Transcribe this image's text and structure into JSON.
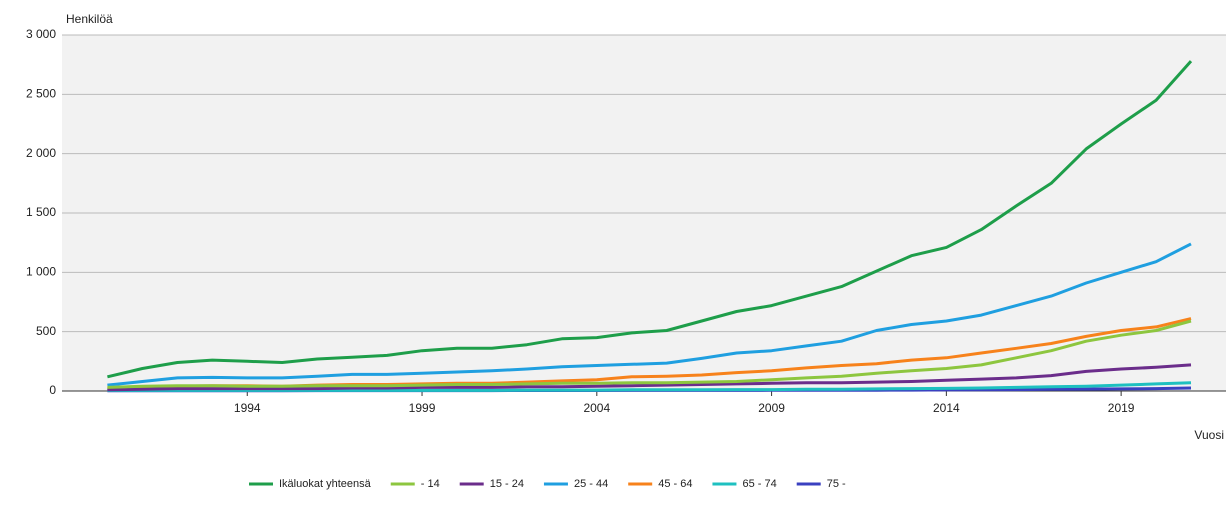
{
  "chart_data": {
    "type": "line",
    "y_label": "Henkilöä",
    "x_label": "Vuosi",
    "x": [
      1990,
      1991,
      1992,
      1993,
      1994,
      1995,
      1996,
      1997,
      1998,
      1999,
      2000,
      2001,
      2002,
      2003,
      2004,
      2005,
      2006,
      2007,
      2008,
      2009,
      2010,
      2011,
      2012,
      2013,
      2014,
      2015,
      2016,
      2017,
      2018,
      2019,
      2020,
      2021
    ],
    "xlim": [
      1988.7,
      2022
    ],
    "xticks": [
      1994,
      1999,
      2004,
      2009,
      2014,
      2019
    ],
    "ylim": [
      0,
      3000
    ],
    "yticks": [
      0,
      500,
      {
        "value": 1000,
        "label": "1 000"
      },
      {
        "value": 1500,
        "label": "1 500"
      },
      {
        "value": 2000,
        "label": "2 000"
      },
      {
        "value": 2500,
        "label": "2 500"
      },
      {
        "value": 3000,
        "label": "3 000"
      }
    ],
    "grid": true,
    "legend": "bottom",
    "series": [
      {
        "name": "Ikäluokat yhteensä",
        "color": "#1e9e4a",
        "values": [
          120,
          190,
          240,
          260,
          250,
          240,
          270,
          285,
          300,
          340,
          360,
          360,
          390,
          440,
          450,
          490,
          510,
          590,
          670,
          720,
          800,
          880,
          1010,
          1140,
          1210,
          1360,
          1560,
          1750,
          2040,
          2250,
          2450,
          2780
        ]
      },
      {
        "name": "- 14",
        "color": "#8dc63f",
        "values": [
          30,
          40,
          45,
          45,
          40,
          40,
          45,
          45,
          45,
          50,
          55,
          55,
          60,
          65,
          65,
          70,
          70,
          75,
          80,
          95,
          110,
          125,
          150,
          170,
          190,
          220,
          280,
          340,
          420,
          470,
          510,
          590
        ]
      },
      {
        "name": "15 - 24",
        "color": "#6b2d8b",
        "values": [
          10,
          15,
          20,
          20,
          20,
          20,
          20,
          25,
          25,
          30,
          30,
          30,
          35,
          35,
          40,
          45,
          50,
          55,
          60,
          65,
          70,
          70,
          75,
          80,
          90,
          100,
          110,
          130,
          165,
          185,
          200,
          220
        ]
      },
      {
        "name": "25 - 44",
        "color": "#1f9fe0",
        "values": [
          50,
          80,
          110,
          115,
          110,
          110,
          125,
          140,
          140,
          150,
          160,
          170,
          185,
          205,
          215,
          225,
          235,
          275,
          320,
          340,
          380,
          420,
          510,
          560,
          590,
          640,
          720,
          800,
          910,
          1000,
          1090,
          1240
        ]
      },
      {
        "name": "45 - 64",
        "color": "#f7821b",
        "values": [
          20,
          30,
          40,
          45,
          45,
          40,
          50,
          55,
          55,
          60,
          65,
          65,
          75,
          85,
          95,
          120,
          125,
          135,
          155,
          170,
          195,
          215,
          230,
          260,
          280,
          320,
          360,
          400,
          460,
          510,
          540,
          610
        ]
      },
      {
        "name": "65 - 74",
        "color": "#1ec0c0",
        "values": [
          5,
          5,
          5,
          5,
          5,
          5,
          5,
          5,
          5,
          5,
          5,
          5,
          8,
          8,
          8,
          10,
          10,
          10,
          12,
          12,
          15,
          15,
          18,
          20,
          22,
          25,
          30,
          35,
          40,
          50,
          60,
          70
        ]
      },
      {
        "name": "75 -",
        "color": "#3a40c0",
        "values": [
          2,
          2,
          2,
          2,
          2,
          2,
          3,
          3,
          3,
          3,
          3,
          3,
          4,
          4,
          4,
          5,
          5,
          5,
          5,
          6,
          6,
          7,
          7,
          8,
          9,
          10,
          12,
          14,
          16,
          18,
          20,
          25
        ]
      }
    ]
  }
}
